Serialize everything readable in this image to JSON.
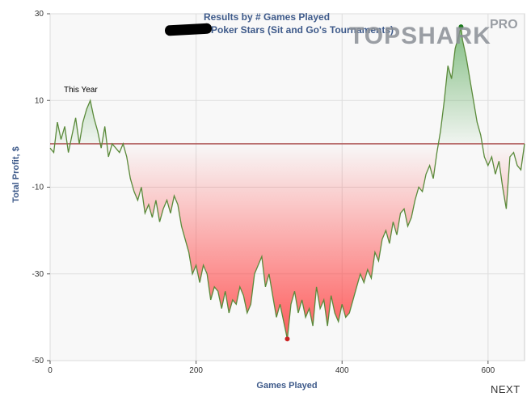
{
  "chart_data": {
    "type": "area",
    "title": "Results by # Games Played",
    "subtitle": "on Poker Stars (Sit and Go's Tournaments)",
    "xlabel": "Games Played",
    "ylabel": "Total Profit, $",
    "xlim": [
      0,
      650
    ],
    "ylim": [
      -50,
      30
    ],
    "xticks": [
      0,
      200,
      400,
      600
    ],
    "yticks": [
      30,
      10,
      -10,
      -30,
      -50
    ],
    "grid": true,
    "baseline": 0,
    "annotation": "This Year",
    "max_point": {
      "x": 563,
      "y": 27
    },
    "min_point": {
      "x": 325,
      "y": -45
    },
    "series": [
      {
        "x": [
          0,
          5,
          10,
          15,
          20,
          25,
          30,
          35,
          40,
          45,
          50,
          55,
          60,
          65,
          70,
          75,
          80,
          85,
          90,
          95,
          100,
          105,
          110,
          115,
          120,
          125,
          130,
          135,
          140,
          145,
          150,
          155,
          160,
          165,
          170,
          175,
          180,
          185,
          190,
          195,
          200,
          205,
          210,
          215,
          220,
          225,
          230,
          235,
          240,
          245,
          250,
          255,
          260,
          265,
          270,
          275,
          280,
          285,
          290,
          295,
          300,
          305,
          310,
          315,
          320,
          325,
          330,
          335,
          340,
          345,
          350,
          355,
          360,
          365,
          370,
          375,
          380,
          385,
          390,
          395,
          400,
          405,
          410,
          415,
          420,
          425,
          430,
          435,
          440,
          445,
          450,
          455,
          460,
          465,
          470,
          475,
          480,
          485,
          490,
          495,
          500,
          505,
          510,
          515,
          520,
          525,
          530,
          535,
          540,
          545,
          550,
          555,
          560,
          563,
          565,
          570,
          575,
          580,
          585,
          590,
          595,
          600,
          605,
          610,
          615,
          620,
          625,
          630,
          635,
          640,
          645,
          650
        ],
        "y": [
          -1,
          -2,
          5,
          1,
          4,
          -2,
          2,
          6,
          0,
          5,
          8,
          10,
          6,
          3,
          -1,
          4,
          -3,
          0,
          -1,
          -2,
          0,
          -3,
          -8,
          -11,
          -13,
          -10,
          -16,
          -14,
          -17,
          -13,
          -18,
          -15,
          -13,
          -16,
          -12,
          -14,
          -19,
          -22,
          -25,
          -30,
          -28,
          -32,
          -28,
          -30,
          -36,
          -33,
          -34,
          -38,
          -34,
          -39,
          -36,
          -37,
          -33,
          -35,
          -39,
          -37,
          -30,
          -28,
          -26,
          -33,
          -30,
          -35,
          -40,
          -37,
          -41,
          -45,
          -37,
          -34,
          -39,
          -36,
          -40,
          -38,
          -42,
          -33,
          -38,
          -36,
          -42,
          -35,
          -39,
          -41,
          -37,
          -40,
          -39,
          -36,
          -33,
          -30,
          -32,
          -29,
          -31,
          -25,
          -27,
          -22,
          -20,
          -23,
          -18,
          -21,
          -16,
          -15,
          -19,
          -17,
          -13,
          -10,
          -11,
          -7,
          -5,
          -8,
          -2,
          3,
          10,
          18,
          15,
          22,
          25,
          27,
          24,
          20,
          15,
          10,
          5,
          2,
          -3,
          -5,
          -3,
          -7,
          -4,
          -10,
          -15,
          -3,
          -2,
          -5,
          -6,
          0
        ]
      }
    ]
  },
  "watermark": {
    "logo_main": "TOPSHARK",
    "logo_badge": "PRO"
  },
  "nav": {
    "next_label": "NEXT"
  },
  "colors": {
    "line": "#5a8a3a",
    "positive_fill": "#5aaa5a",
    "negative_fill": "#ff4040",
    "baseline": "#b05a5a",
    "title": "#3e5a8a",
    "max_marker": "#1a7a1a",
    "min_marker": "#cc2222"
  }
}
